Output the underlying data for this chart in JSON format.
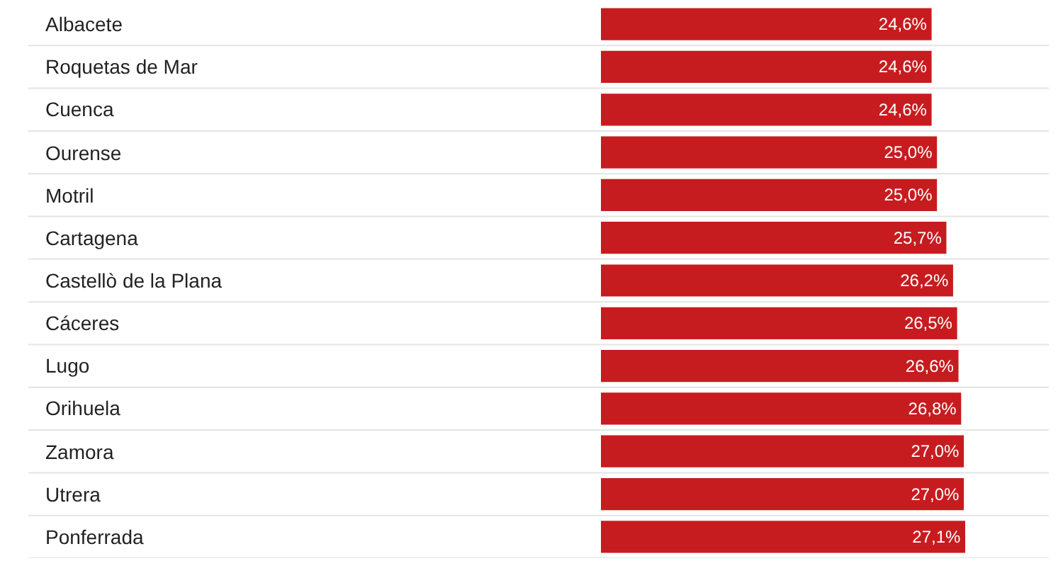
{
  "chart_data": {
    "type": "bar",
    "orientation": "horizontal",
    "categories": [
      "Albacete",
      "Roquetas de Mar",
      "Cuenca",
      "Ourense",
      "Motril",
      "Cartagena",
      "Castellò de la Plana",
      "Cáceres",
      "Lugo",
      "Orihuela",
      "Zamora",
      "Utrera",
      "Ponferrada"
    ],
    "values": [
      24.6,
      24.6,
      24.6,
      25.0,
      25.0,
      25.7,
      26.2,
      26.5,
      26.6,
      26.8,
      27.0,
      27.0,
      27.1
    ],
    "value_labels": [
      "24,6%",
      "24,6%",
      "24,6%",
      "25,0%",
      "25,0%",
      "25,7%",
      "26,2%",
      "26,5%",
      "26,6%",
      "26,8%",
      "27,0%",
      "27,0%",
      "27,1%"
    ],
    "color": "#c71c1f",
    "grid": false,
    "legend": false
  }
}
